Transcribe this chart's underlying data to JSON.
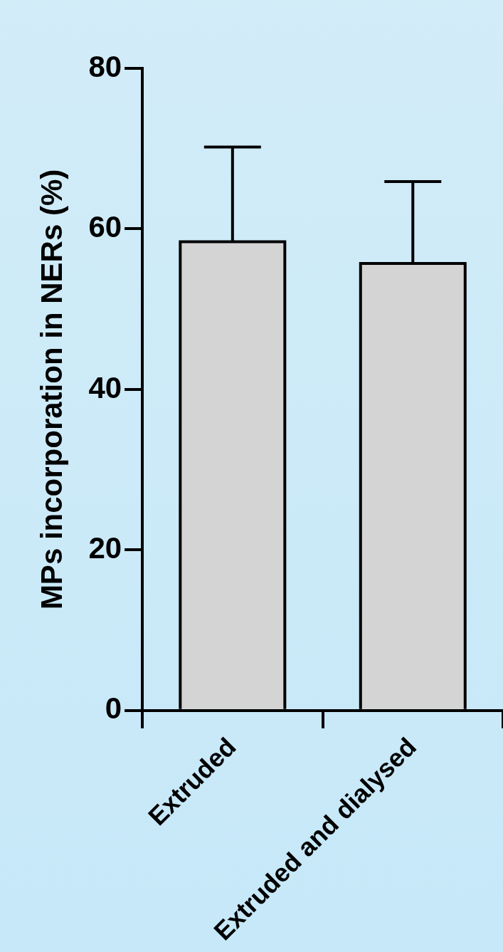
{
  "chart_data": {
    "type": "bar",
    "ylabel": "MPs incorporation in NERs (%)",
    "categories": [
      "Extruded",
      "Extruded and dialysed"
    ],
    "values": [
      58.4,
      55.7
    ],
    "color": "#d4d4d4",
    "errors": [
      [
        58.4,
        70.2
      ],
      [
        55.7,
        65.9
      ]
    ],
    "ylim": [
      0,
      80
    ],
    "yticks": [
      0,
      20,
      40,
      60,
      80
    ],
    "grid": false,
    "legend": false
  }
}
